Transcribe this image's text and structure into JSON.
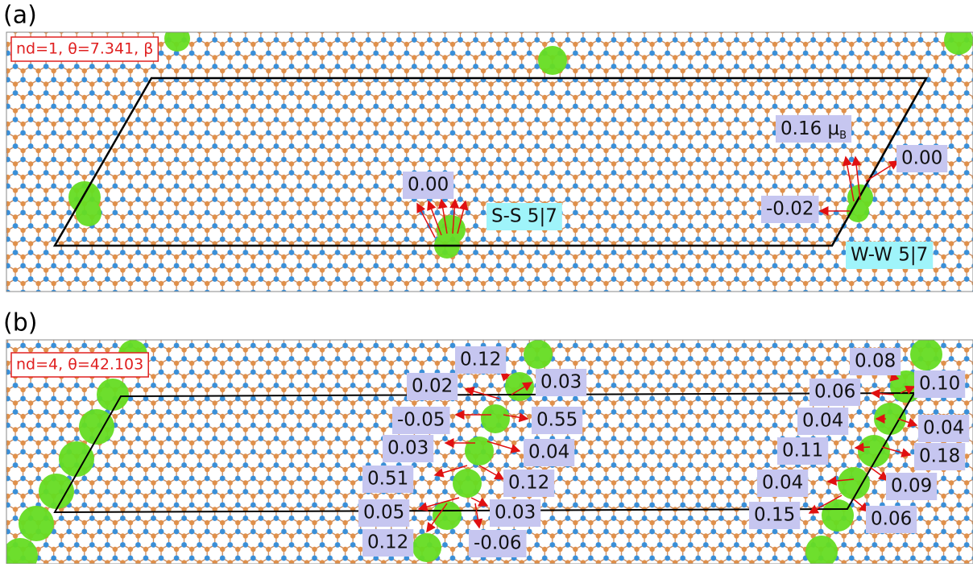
{
  "panel_a": {
    "tag": "(a)",
    "info": "nd=1, θ=7.341, β",
    "moment": {
      "text": "0.16 μ",
      "sub": "B"
    },
    "labels": [
      "0.00",
      "0.00",
      "-0.02"
    ],
    "defects": [
      "S-S 5|7",
      "W-W 5|7"
    ]
  },
  "panel_b": {
    "tag": "(b)",
    "info": "nd=4, θ=42.103",
    "labels": [
      "0.12",
      "0.02",
      "0.03",
      "-0.05",
      "0.55",
      "0.03",
      "0.04",
      "0.51",
      "0.12",
      "0.05",
      "0.03",
      "0.12",
      "-0.06",
      "0.08",
      "0.06",
      "0.10",
      "0.04",
      "0.04",
      "0.11",
      "0.18",
      "0.04",
      "0.09",
      "0.15",
      "0.06"
    ]
  }
}
